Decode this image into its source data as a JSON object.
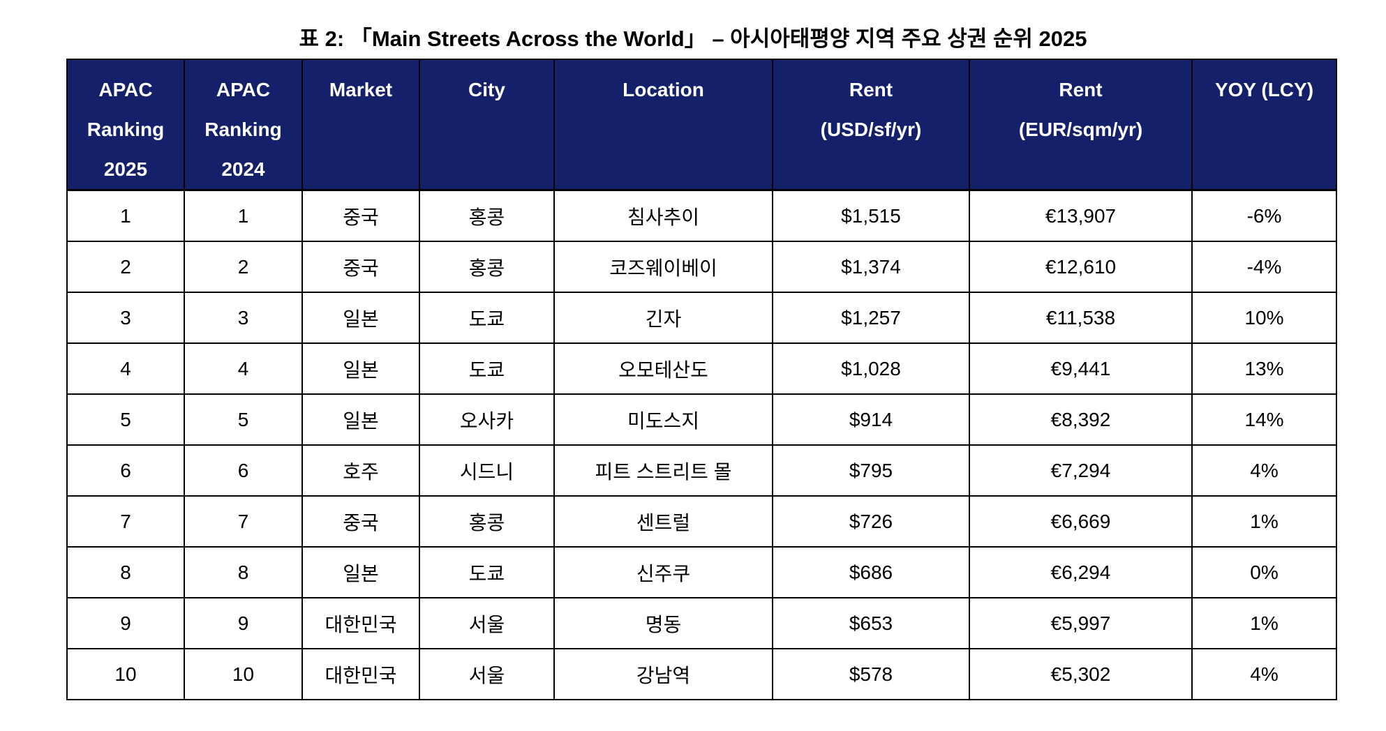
{
  "title": "표 2: 「Main Streets Across the World」 – 아시아태평양 지역 주요 상권 순위 2025",
  "table": {
    "headers": [
      [
        "APAC",
        "Ranking",
        "2025"
      ],
      [
        "APAC",
        "Ranking",
        "2024"
      ],
      [
        "Market"
      ],
      [
        "City"
      ],
      [
        "Location"
      ],
      [
        "Rent",
        "(USD/sf/yr)"
      ],
      [
        "Rent",
        "(EUR/sqm/yr)"
      ],
      [
        "YOY (LCY)"
      ]
    ],
    "rows": [
      [
        "1",
        "1",
        "중국",
        "홍콩",
        "침사추이",
        "$1,515",
        "€13,907",
        "-6%"
      ],
      [
        "2",
        "2",
        "중국",
        "홍콩",
        "코즈웨이베이",
        "$1,374",
        "€12,610",
        "-4%"
      ],
      [
        "3",
        "3",
        "일본",
        "도쿄",
        "긴자",
        "$1,257",
        "€11,538",
        "10%"
      ],
      [
        "4",
        "4",
        "일본",
        "도쿄",
        "오모테산도",
        "$1,028",
        "€9,441",
        "13%"
      ],
      [
        "5",
        "5",
        "일본",
        "오사카",
        "미도스지",
        "$914",
        "€8,392",
        "14%"
      ],
      [
        "6",
        "6",
        "호주",
        "시드니",
        "피트 스트리트 몰",
        "$795",
        "€7,294",
        "4%"
      ],
      [
        "7",
        "7",
        "중국",
        "홍콩",
        "센트럴",
        "$726",
        "€6,669",
        "1%"
      ],
      [
        "8",
        "8",
        "일본",
        "도쿄",
        "신주쿠",
        "$686",
        "€6,294",
        "0%"
      ],
      [
        "9",
        "9",
        "대한민국",
        "서울",
        "명동",
        "$653",
        "€5,997",
        "1%"
      ],
      [
        "10",
        "10",
        "대한민국",
        "서울",
        "강남역",
        "$578",
        "€5,302",
        "4%"
      ]
    ]
  }
}
